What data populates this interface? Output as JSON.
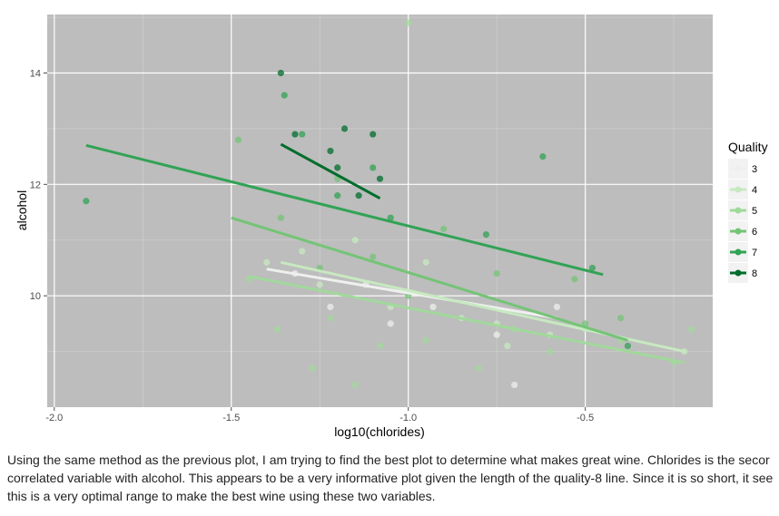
{
  "chart_data": {
    "type": "scatter",
    "xlabel": "log10(chlorides)",
    "ylabel": "alcohol",
    "xlim": [
      -2.02,
      -0.14
    ],
    "ylim": [
      8.0,
      15.05
    ],
    "x_ticks": [
      -2.0,
      -1.5,
      -1.0,
      -0.5
    ],
    "x_tick_labels": [
      "-2.0",
      "-1.5",
      "-1.0",
      "-0.5"
    ],
    "y_ticks": [
      10,
      12,
      14
    ],
    "y_tick_labels": [
      "10",
      "12",
      "14"
    ],
    "grid": true,
    "legend_position": "right",
    "legend": {
      "title": "Quality",
      "entries": [
        {
          "label": "3",
          "color": "#eef0ee"
        },
        {
          "label": "4",
          "color": "#c7e9c0"
        },
        {
          "label": "5",
          "color": "#a1d99b"
        },
        {
          "label": "6",
          "color": "#74c476"
        },
        {
          "label": "7",
          "color": "#31a354"
        },
        {
          "label": "8",
          "color": "#006d2c"
        }
      ]
    },
    "series": [
      {
        "name": "3",
        "color": "#eef0ee",
        "regression": {
          "x": [
            -1.4,
            -0.58
          ],
          "y": [
            10.48,
            9.6
          ]
        },
        "points": [
          [
            -0.7,
            8.4
          ],
          [
            -0.58,
            9.8
          ],
          [
            -0.75,
            9.3
          ],
          [
            -1.05,
            9.5
          ],
          [
            -1.22,
            9.8
          ],
          [
            -1.12,
            10.2
          ],
          [
            -0.93,
            9.8
          ],
          [
            -1.32,
            10.4
          ]
        ]
      },
      {
        "name": "4",
        "color": "#c7e9c0",
        "regression": {
          "x": [
            -1.36,
            -0.22
          ],
          "y": [
            10.6,
            9.0
          ]
        },
        "points": [
          [
            -0.22,
            9.0
          ],
          [
            -0.6,
            9.3
          ],
          [
            -0.75,
            9.5
          ],
          [
            -1.3,
            10.8
          ],
          [
            -1.05,
            9.8
          ],
          [
            -0.95,
            10.6
          ],
          [
            -1.15,
            11.0
          ],
          [
            -0.85,
            9.6
          ],
          [
            -1.25,
            10.2
          ],
          [
            -0.72,
            9.1
          ],
          [
            -0.5,
            9.4
          ],
          [
            -1.4,
            10.6
          ]
        ]
      },
      {
        "name": "5",
        "color": "#a1d99b",
        "regression": {
          "x": [
            -1.45,
            -0.22
          ],
          "y": [
            10.35,
            8.8
          ]
        },
        "points": [
          [
            -0.25,
            8.8
          ],
          [
            -0.2,
            9.4
          ],
          [
            -0.4,
            9.2
          ],
          [
            -0.6,
            9.0
          ],
          [
            -0.8,
            8.7
          ],
          [
            -0.95,
            9.2
          ],
          [
            -1.27,
            8.7
          ],
          [
            -1.15,
            8.4
          ],
          [
            -1.37,
            9.4
          ],
          [
            -1.45,
            10.3
          ],
          [
            -1.22,
            9.6
          ],
          [
            -1.08,
            9.1
          ],
          [
            -0.7,
            9.4
          ],
          [
            -1.0,
            14.9
          ]
        ]
      },
      {
        "name": "6",
        "color": "#74c476",
        "regression": {
          "x": [
            -1.5,
            -0.38
          ],
          "y": [
            11.4,
            9.2
          ]
        },
        "points": [
          [
            -1.48,
            12.8
          ],
          [
            -1.36,
            11.4
          ],
          [
            -1.2,
            12.1
          ],
          [
            -1.1,
            10.7
          ],
          [
            -0.9,
            11.2
          ],
          [
            -0.75,
            10.4
          ],
          [
            -0.53,
            10.3
          ],
          [
            -0.5,
            9.5
          ],
          [
            -0.4,
            9.6
          ],
          [
            -1.25,
            10.5
          ],
          [
            -1.0,
            10.0
          ]
        ]
      },
      {
        "name": "7",
        "color": "#31a354",
        "regression": {
          "x": [
            -1.91,
            -0.45
          ],
          "y": [
            12.7,
            10.38
          ]
        },
        "points": [
          [
            -1.91,
            11.7
          ],
          [
            -1.3,
            12.9
          ],
          [
            -1.2,
            11.8
          ],
          [
            -1.05,
            11.4
          ],
          [
            -0.78,
            11.1
          ],
          [
            -0.62,
            12.5
          ],
          [
            -0.48,
            10.5
          ],
          [
            -0.38,
            9.1
          ],
          [
            -1.35,
            13.6
          ],
          [
            -1.1,
            12.3
          ]
        ]
      },
      {
        "name": "8",
        "color": "#006d2c",
        "regression": {
          "x": [
            -1.36,
            -1.08
          ],
          "y": [
            12.72,
            11.75
          ]
        },
        "points": [
          [
            -1.36,
            14.0
          ],
          [
            -1.32,
            12.9
          ],
          [
            -1.2,
            12.3
          ],
          [
            -1.1,
            12.9
          ],
          [
            -1.14,
            11.8
          ],
          [
            -1.22,
            12.6
          ],
          [
            -1.08,
            12.1
          ],
          [
            -1.18,
            13.0
          ]
        ]
      }
    ]
  },
  "caption": "Using the same method as the previous plot, I am trying to find the best plot to determine what makes great wine. Chlorides is the secor\ncorrelated variable with alcohol. This appears to be a very informative plot given the length of the quality-8 line. Since it is so short, it see\nthis is a very optimal range to make the best wine using these two variables."
}
